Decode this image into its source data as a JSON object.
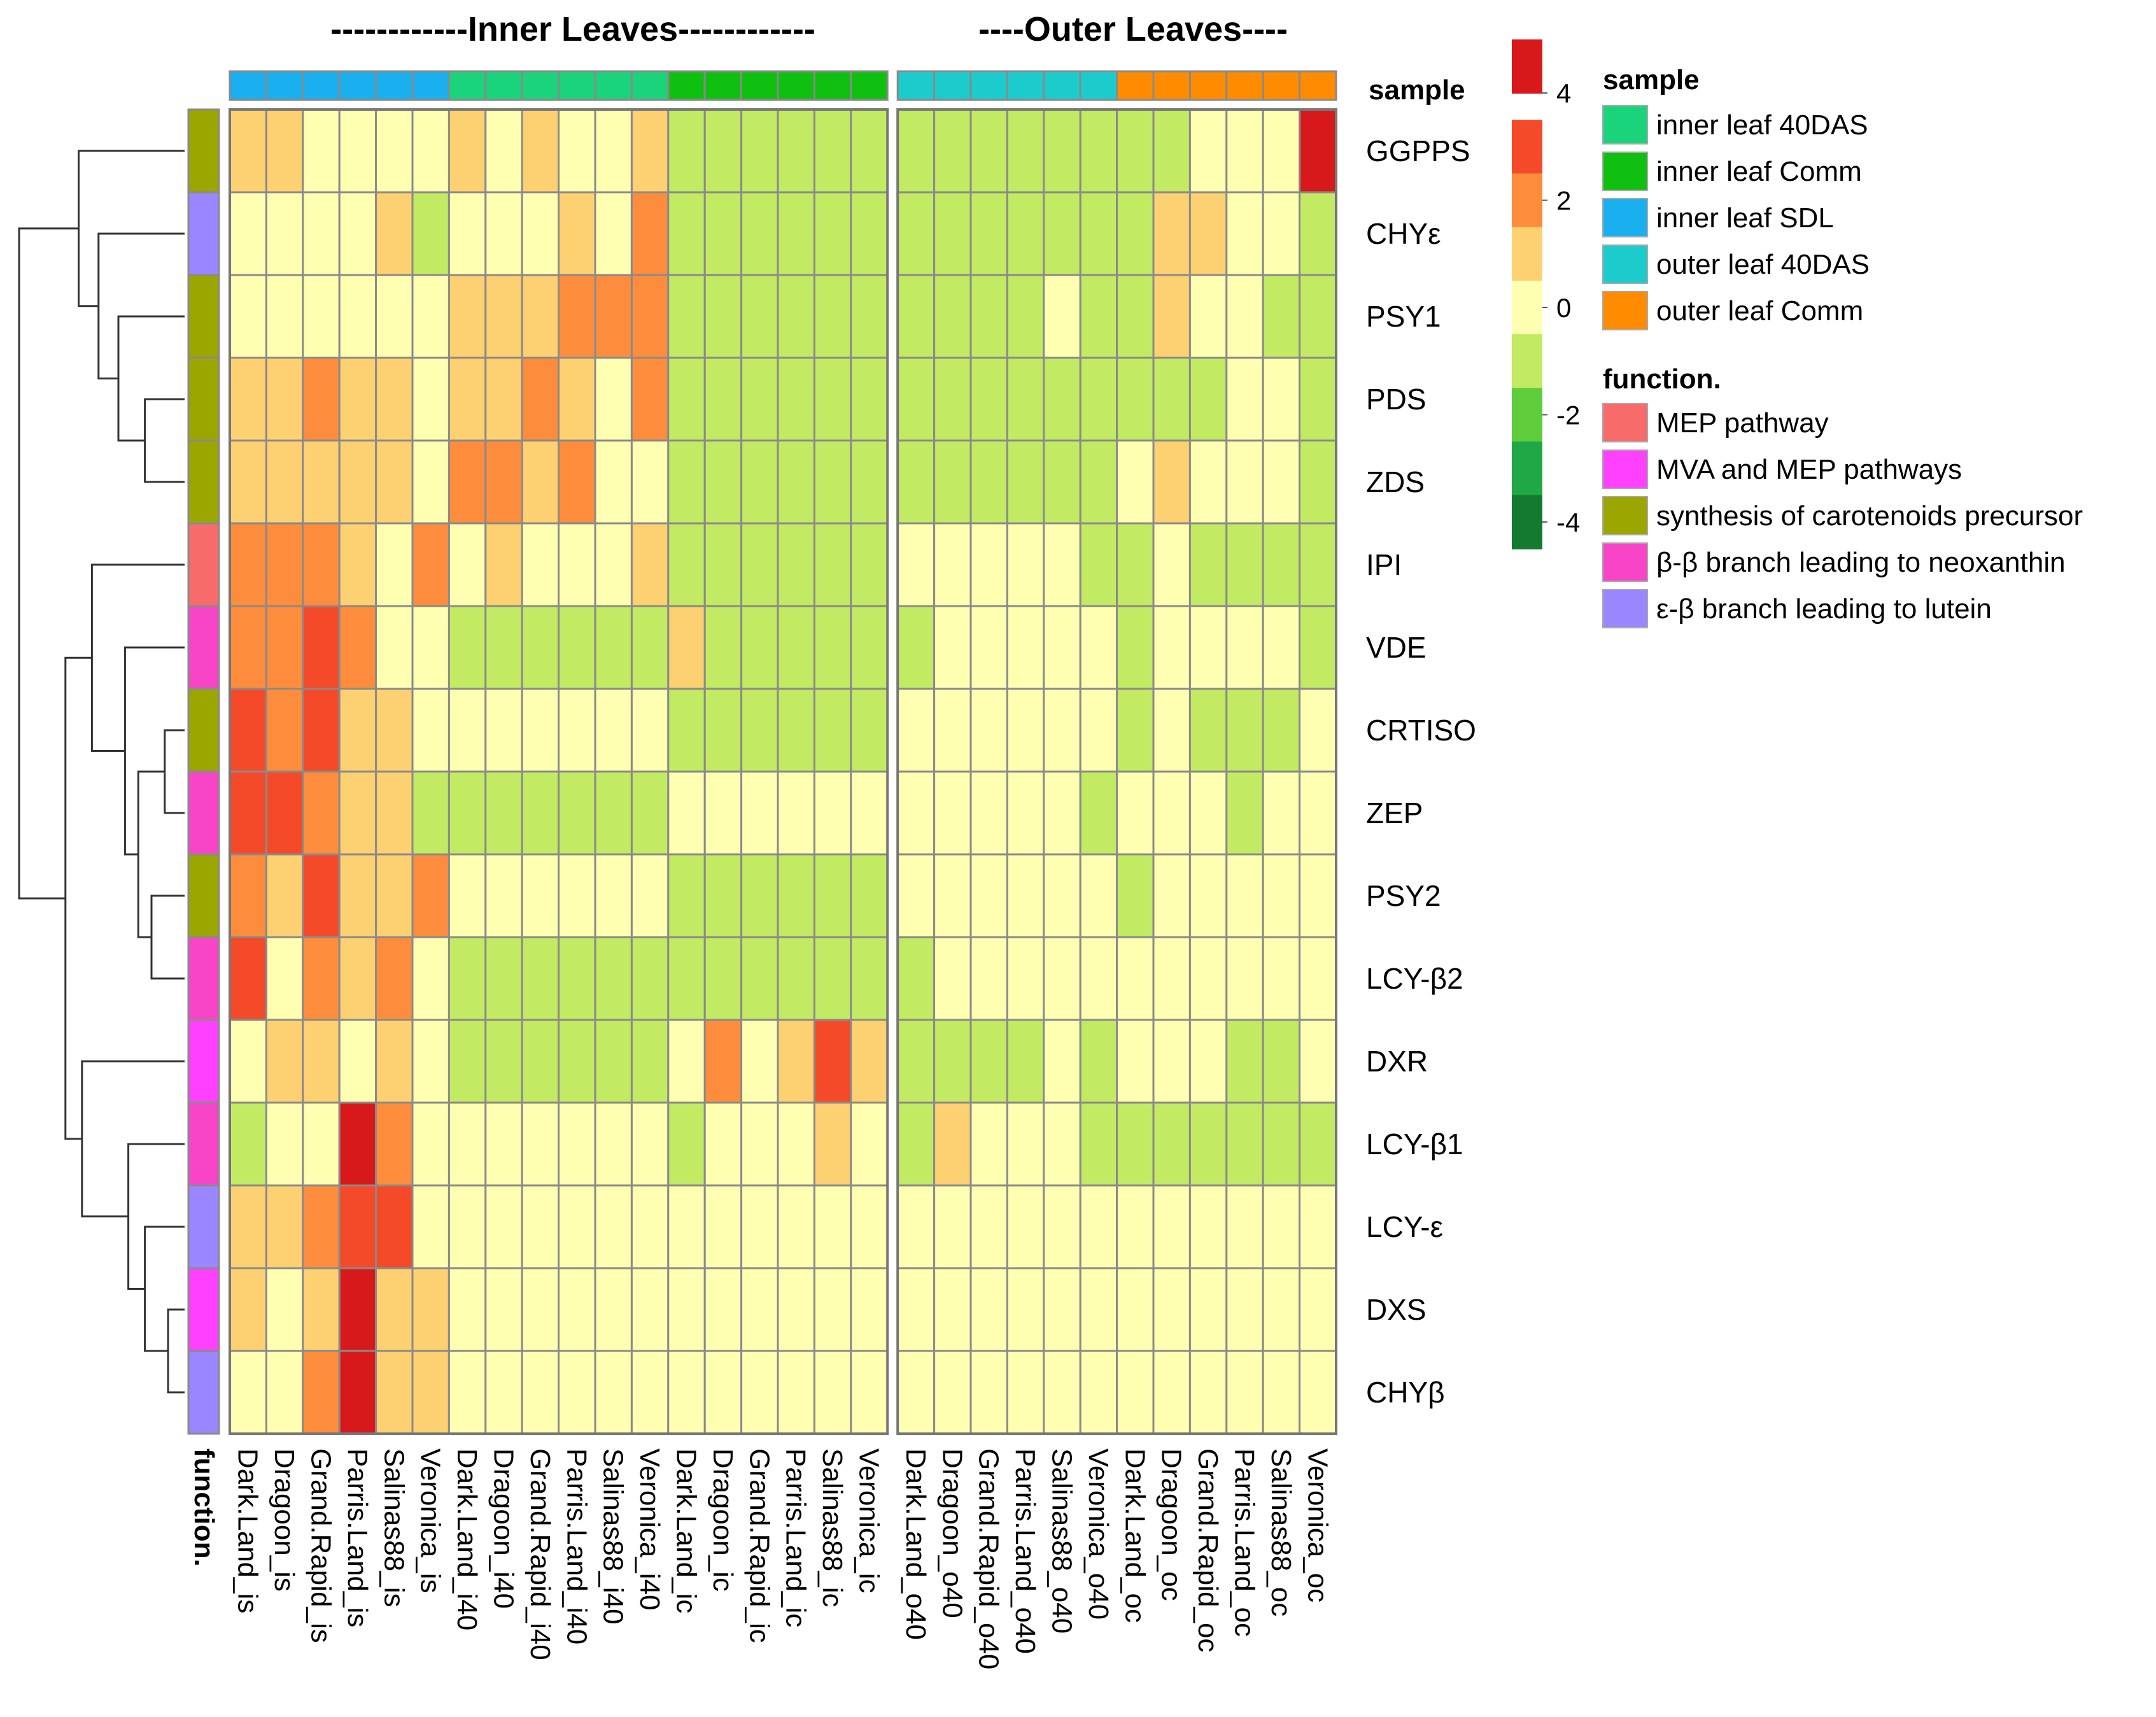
{
  "chart_data": {
    "type": "heatmap",
    "title_left": "------------Inner Leaves------------",
    "title_right": "----Outer Leaves----",
    "rows": [
      "GGPPS",
      "CHYε",
      "PSY1",
      "PDS",
      "ZDS",
      "IPI",
      "VDE",
      "CRTISO",
      "ZEP",
      "PSY2",
      "LCY-β2",
      "DXR",
      "LCY-β1",
      "LCY-ε",
      "DXS",
      "CHYβ"
    ],
    "columns": [
      "Dark.Land_is",
      "Dragoon_is",
      "Grand.Rapid_is",
      "Parris.Land_is",
      "Salinas88_is",
      "Veronica_is",
      "Dark.Land_i40",
      "Dragoon_i40",
      "Grand.Rapid_i40",
      "Parris.Land_i40",
      "Salinas88_i40",
      "Veronica_i40",
      "Dark.Land_ic",
      "Dragoon_ic",
      "Grand.Rapid_ic",
      "Parris.Land_ic",
      "Salinas88_ic",
      "Veronica_ic",
      "Dark.Land_o40",
      "Dragoon_o40",
      "Grand.Rapid_o40",
      "Parris.Land_o40",
      "Salinas88_o40",
      "Veronica_o40",
      "Dark.Land_oc",
      "Dragoon_oc",
      "Grand.Rapid_oc",
      "Parris.Land_oc",
      "Salinas88_oc",
      "Veronica_oc"
    ],
    "column_groups": [
      "inner leaf SDL",
      "inner leaf SDL",
      "inner leaf SDL",
      "inner leaf SDL",
      "inner leaf SDL",
      "inner leaf SDL",
      "inner leaf 40DAS",
      "inner leaf 40DAS",
      "inner leaf 40DAS",
      "inner leaf 40DAS",
      "inner leaf 40DAS",
      "inner leaf 40DAS",
      "inner leaf Comm",
      "inner leaf Comm",
      "inner leaf Comm",
      "inner leaf Comm",
      "inner leaf Comm",
      "inner leaf Comm",
      "outer leaf 40DAS",
      "outer leaf 40DAS",
      "outer leaf 40DAS",
      "outer leaf 40DAS",
      "outer leaf 40DAS",
      "outer leaf 40DAS",
      "outer leaf Comm",
      "outer leaf Comm",
      "outer leaf Comm",
      "outer leaf Comm",
      "outer leaf Comm",
      "outer leaf Comm"
    ],
    "row_functions": [
      "synthesis of carotenoids precursor",
      "ε-β branch leading to lutein",
      "synthesis of carotenoids precursor",
      "synthesis of carotenoids precursor",
      "synthesis of carotenoids precursor",
      "MEP pathway",
      "β-β branch leading to neoxanthin",
      "synthesis of carotenoids precursor",
      "β-β branch leading to neoxanthin",
      "synthesis of carotenoids precursor",
      "β-β branch leading to neoxanthin",
      "MVA and MEP pathways",
      "β-β branch leading to neoxanthin",
      "ε-β branch leading to lutein",
      "MVA and MEP pathways",
      "ε-β branch leading to lutein"
    ],
    "values": [
      [
        1,
        1,
        0,
        0,
        0,
        0,
        1,
        0,
        1,
        0,
        0,
        1,
        -1,
        -1,
        -1,
        -1,
        -1,
        -1,
        -1,
        -1,
        -1,
        -1,
        -1,
        -1,
        -1,
        -1,
        0,
        0,
        0,
        4.5
      ],
      [
        0,
        0,
        0,
        0,
        1,
        -1,
        0,
        0,
        0,
        1,
        0,
        2,
        -1,
        -1,
        -1,
        -1,
        -1,
        -1,
        -1,
        -1,
        -1,
        -1,
        -1,
        -1,
        -1,
        1,
        1,
        0,
        0,
        -1
      ],
      [
        0,
        0,
        0,
        0,
        0,
        0,
        1,
        1,
        1,
        2,
        2,
        2,
        -1,
        -1,
        -1,
        -1,
        -1,
        -1,
        -1,
        -1,
        -1,
        -1,
        0,
        -1,
        -1,
        1,
        0,
        0,
        -1,
        -1
      ],
      [
        1,
        1,
        2,
        1,
        1,
        0,
        1,
        1,
        2,
        1,
        0,
        2,
        -1,
        -1,
        -1,
        -1,
        -1,
        -1,
        -1,
        -1,
        -1,
        -1,
        -1,
        -1,
        -1,
        -1,
        -1,
        0,
        0,
        -1
      ],
      [
        1,
        1,
        1,
        1,
        1,
        0,
        2,
        2,
        1,
        2,
        0,
        0,
        -1,
        -1,
        -1,
        -1,
        -1,
        -1,
        -1,
        -1,
        -1,
        -1,
        -1,
        -1,
        0,
        1,
        0,
        0,
        0,
        -1
      ],
      [
        2,
        2,
        2,
        1,
        0,
        2,
        0,
        1,
        0,
        0,
        0,
        1,
        -1,
        -1,
        -1,
        -1,
        -1,
        -1,
        0,
        0,
        0,
        0,
        0,
        -1,
        -1,
        0,
        -1,
        -1,
        -1,
        -1
      ],
      [
        2,
        2,
        3,
        2,
        0,
        0,
        -1,
        -1,
        -1,
        -1,
        -1,
        -1,
        1,
        -1,
        -1,
        -1,
        -1,
        -1,
        -1,
        0,
        0,
        0,
        0,
        0,
        -1,
        0,
        0,
        0,
        0,
        -1
      ],
      [
        3,
        2,
        3,
        1,
        1,
        0,
        0,
        0,
        0,
        0,
        0,
        0,
        -1,
        -1,
        -1,
        -1,
        -1,
        -1,
        0,
        0,
        0,
        0,
        0,
        0,
        -1,
        0,
        -1,
        -1,
        -1,
        0
      ],
      [
        3,
        3,
        2,
        1,
        1,
        -1,
        -1,
        -1,
        -1,
        -1,
        -1,
        -1,
        0,
        0,
        0,
        0,
        0,
        0,
        0,
        0,
        0,
        0,
        0,
        -1,
        0,
        0,
        0,
        -1,
        0,
        0
      ],
      [
        2,
        1,
        3,
        1,
        1,
        2,
        0,
        0,
        0,
        0,
        0,
        0,
        -1,
        -1,
        -1,
        -1,
        -1,
        -1,
        0,
        0,
        0,
        0,
        0,
        0,
        -1,
        0,
        0,
        0,
        0,
        0
      ],
      [
        3,
        0,
        2,
        1,
        2,
        0,
        -1,
        -1,
        -1,
        -1,
        -1,
        -1,
        -1,
        -1,
        -1,
        -1,
        -1,
        -1,
        -1,
        0,
        0,
        0,
        0,
        0,
        0,
        0,
        0,
        0,
        0,
        0
      ],
      [
        0,
        1,
        1,
        0,
        1,
        0,
        -1,
        -1,
        -1,
        -1,
        -1,
        -1,
        0,
        2,
        0,
        1,
        3,
        1,
        -1,
        -1,
        -1,
        -1,
        0,
        -1,
        0,
        0,
        0,
        -1,
        -1,
        0
      ],
      [
        -1,
        0,
        0,
        4.5,
        2,
        0,
        0,
        0,
        0,
        0,
        0,
        0,
        -1,
        0,
        0,
        0,
        1,
        0,
        -1,
        1,
        0,
        0,
        0,
        -1,
        -1,
        -1,
        -1,
        -1,
        -1,
        -1
      ],
      [
        1,
        1,
        2,
        3,
        3,
        0,
        0,
        0,
        0,
        0,
        0,
        0,
        0,
        0,
        0,
        0,
        0,
        0,
        0,
        0,
        0,
        0,
        0,
        0,
        0,
        0,
        0,
        0,
        0,
        0
      ],
      [
        1,
        0,
        1,
        4.5,
        1,
        1,
        0,
        0,
        0,
        0,
        0,
        0,
        0,
        0,
        0,
        0,
        0,
        0,
        0,
        0,
        0,
        0,
        0,
        0,
        0,
        0,
        0,
        0,
        0,
        0
      ],
      [
        0,
        0,
        2,
        4.5,
        1,
        1,
        0,
        0,
        0,
        0,
        0,
        0,
        0,
        0,
        0,
        0,
        0,
        0,
        0,
        0,
        0,
        0,
        0,
        0,
        0,
        0,
        0,
        0,
        0,
        0
      ]
    ],
    "color_scale": {
      "ticks": [
        4,
        2,
        0,
        -2,
        -4
      ],
      "stops": [
        {
          "value": 4.5,
          "color": "#d7191c"
        },
        {
          "value": 3,
          "color": "#f44a2a"
        },
        {
          "value": 2,
          "color": "#fd8d3c"
        },
        {
          "value": 1,
          "color": "#fdd071"
        },
        {
          "value": 0,
          "color": "#ffffb2"
        },
        {
          "value": -1,
          "color": "#c2ea62"
        },
        {
          "value": -2,
          "color": "#5fcc3c"
        },
        {
          "value": -3,
          "color": "#1fa845"
        },
        {
          "value": -4,
          "color": "#137a2f"
        }
      ]
    },
    "legend": {
      "sample_title": "sample",
      "sample": [
        {
          "label": "inner leaf 40DAS",
          "color": "#19d47a"
        },
        {
          "label": "inner leaf Comm",
          "color": "#10c010"
        },
        {
          "label": "inner leaf SDL",
          "color": "#1ab0f0"
        },
        {
          "label": "outer leaf 40DAS",
          "color": "#1ccccc"
        },
        {
          "label": "outer leaf Comm",
          "color": "#ff8c00"
        }
      ],
      "function_title": "function.",
      "function": [
        {
          "label": "MEP pathway",
          "color": "#f76b6b"
        },
        {
          "label": "MVA and MEP pathways",
          "color": "#ff40ff"
        },
        {
          "label": "synthesis of carotenoids precursor",
          "color": "#9ba600"
        },
        {
          "label": "β-β branch leading to neoxanthin",
          "color": "#f845c8"
        },
        {
          "label": "ε-β branch leading to lutein",
          "color": "#9a87ff"
        }
      ]
    },
    "annotation_labels": {
      "sample": "sample",
      "function": "function."
    },
    "row_dendrogram": {
      "merges": [
        [
          3,
          4
        ],
        [
          2,
          "m0"
        ],
        [
          1,
          "m1"
        ],
        [
          0,
          "m2"
        ],
        [
          8,
          7
        ],
        [
          9,
          10
        ],
        [
          "m4",
          "m5"
        ],
        [
          6,
          "m6"
        ],
        [
          5,
          "m7"
        ],
        [
          14,
          15
        ],
        [
          13,
          "m9"
        ],
        [
          12,
          "m10"
        ],
        [
          11,
          "m11"
        ],
        [
          "m8",
          "m12"
        ],
        [
          "m3",
          "m13"
        ]
      ],
      "heights": [
        0.12,
        0.2,
        0.26,
        0.32,
        0.06,
        0.1,
        0.14,
        0.18,
        0.28,
        0.05,
        0.12,
        0.17,
        0.31,
        0.36,
        0.5
      ]
    }
  }
}
